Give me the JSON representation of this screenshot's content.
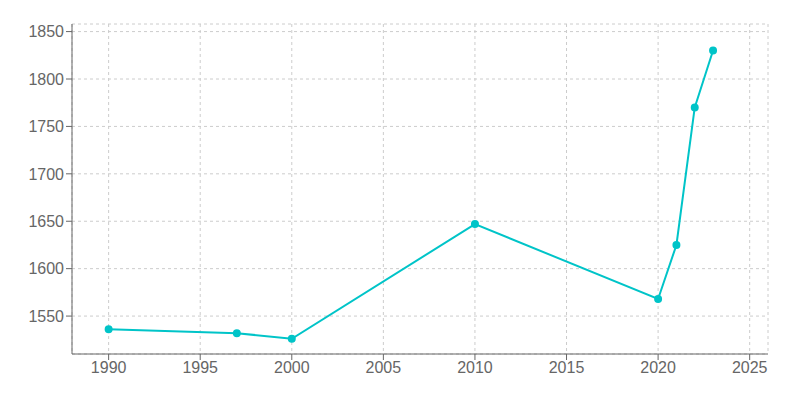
{
  "chart_data": {
    "type": "line",
    "x": [
      1990,
      1997,
      2000,
      2010,
      2020,
      2021,
      2022,
      2023
    ],
    "values": [
      1536,
      1532,
      1526,
      1647,
      1568,
      1625,
      1770,
      1830
    ],
    "color": "#00C4C8",
    "marker": "circle",
    "xlim": [
      1988,
      2026
    ],
    "ylim": [
      1510,
      1858
    ],
    "xticks": [
      1990,
      1995,
      2000,
      2005,
      2010,
      2015,
      2020,
      2025
    ],
    "yticks": [
      1550,
      1600,
      1650,
      1700,
      1750,
      1800,
      1850
    ],
    "grid": true
  }
}
